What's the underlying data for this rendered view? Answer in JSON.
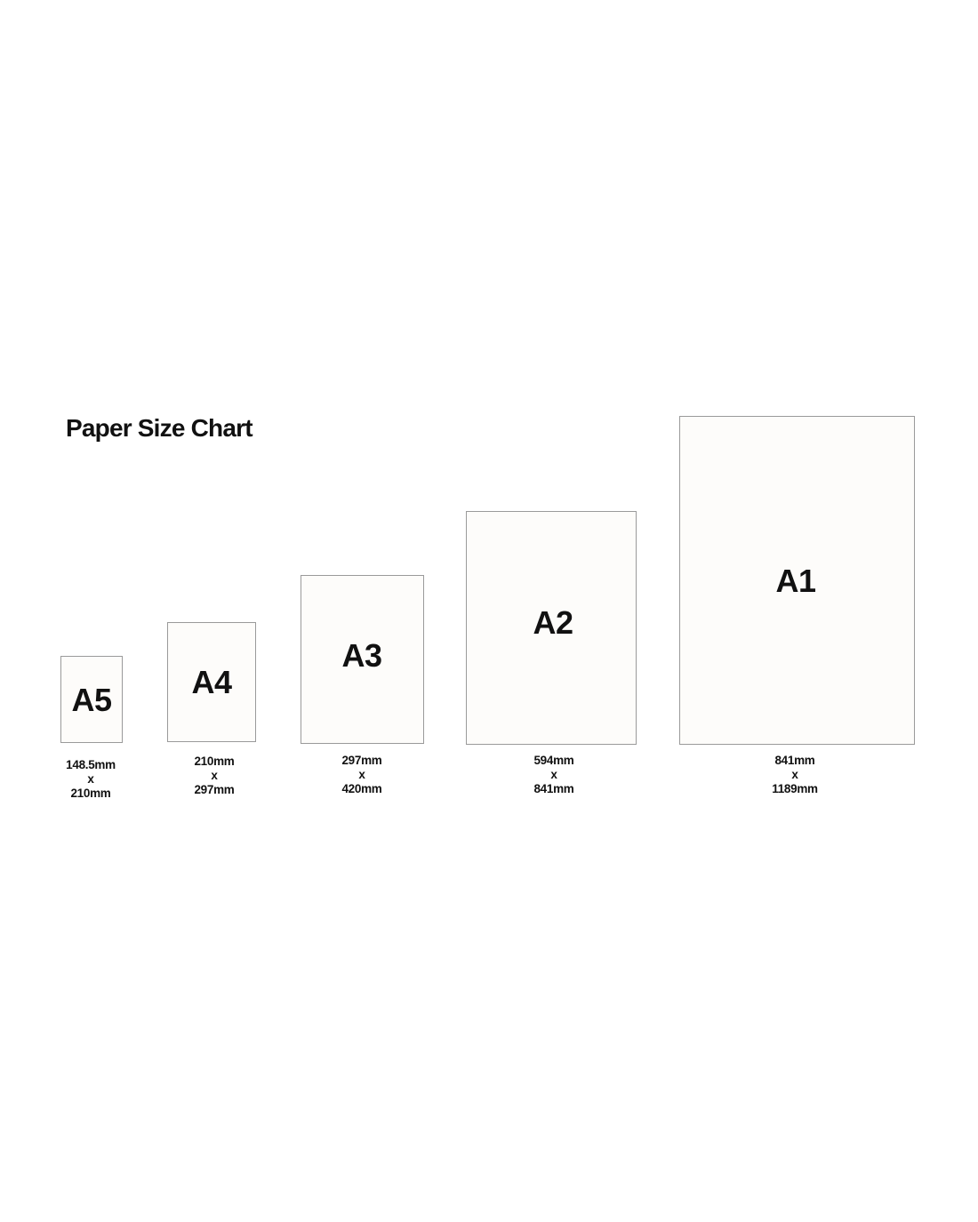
{
  "title": "Paper Size Chart",
  "sheets": [
    {
      "name": "A5",
      "width": "148.5mm",
      "separator": "x",
      "height": "210mm"
    },
    {
      "name": "A4",
      "width": "210mm",
      "separator": "x",
      "height": "297mm"
    },
    {
      "name": "A3",
      "width": "297mm",
      "separator": "x",
      "height": "420mm"
    },
    {
      "name": "A2",
      "width": "594mm",
      "separator": "x",
      "height": "841mm"
    },
    {
      "name": "A1",
      "width": "841mm",
      "separator": "x",
      "height": "1189mm"
    }
  ],
  "colors": {
    "sheet_fill": "#fdfcfa",
    "sheet_border": "#9a9a9a",
    "text": "#111111"
  }
}
